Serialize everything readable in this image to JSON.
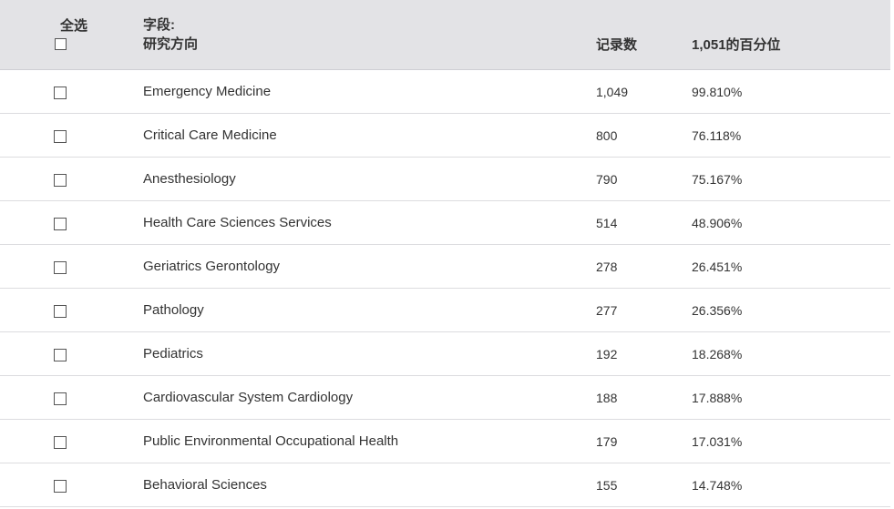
{
  "header": {
    "select_all_label": "全选",
    "field_label_line1": "字段:",
    "field_label_line2": "研究方向",
    "count_label": "记录数",
    "percent_label": "1,051的百分位"
  },
  "rows": [
    {
      "name": "Emergency Medicine",
      "count": "1,049",
      "percent": "99.810%"
    },
    {
      "name": "Critical Care Medicine",
      "count": "800",
      "percent": "76.118%"
    },
    {
      "name": "Anesthesiology",
      "count": "790",
      "percent": "75.167%"
    },
    {
      "name": "Health Care Sciences Services",
      "count": "514",
      "percent": "48.906%"
    },
    {
      "name": "Geriatrics Gerontology",
      "count": "278",
      "percent": "26.451%"
    },
    {
      "name": "Pathology",
      "count": "277",
      "percent": "26.356%"
    },
    {
      "name": "Pediatrics",
      "count": "192",
      "percent": "18.268%"
    },
    {
      "name": "Cardiovascular System Cardiology",
      "count": "188",
      "percent": "17.888%"
    },
    {
      "name": "Public Environmental Occupational Health",
      "count": "179",
      "percent": "17.031%"
    },
    {
      "name": "Behavioral Sciences",
      "count": "155",
      "percent": "14.748%"
    }
  ],
  "colors": {
    "header_bg": "#e3e3e6",
    "text": "#333333",
    "divider": "#dcdcdf"
  }
}
